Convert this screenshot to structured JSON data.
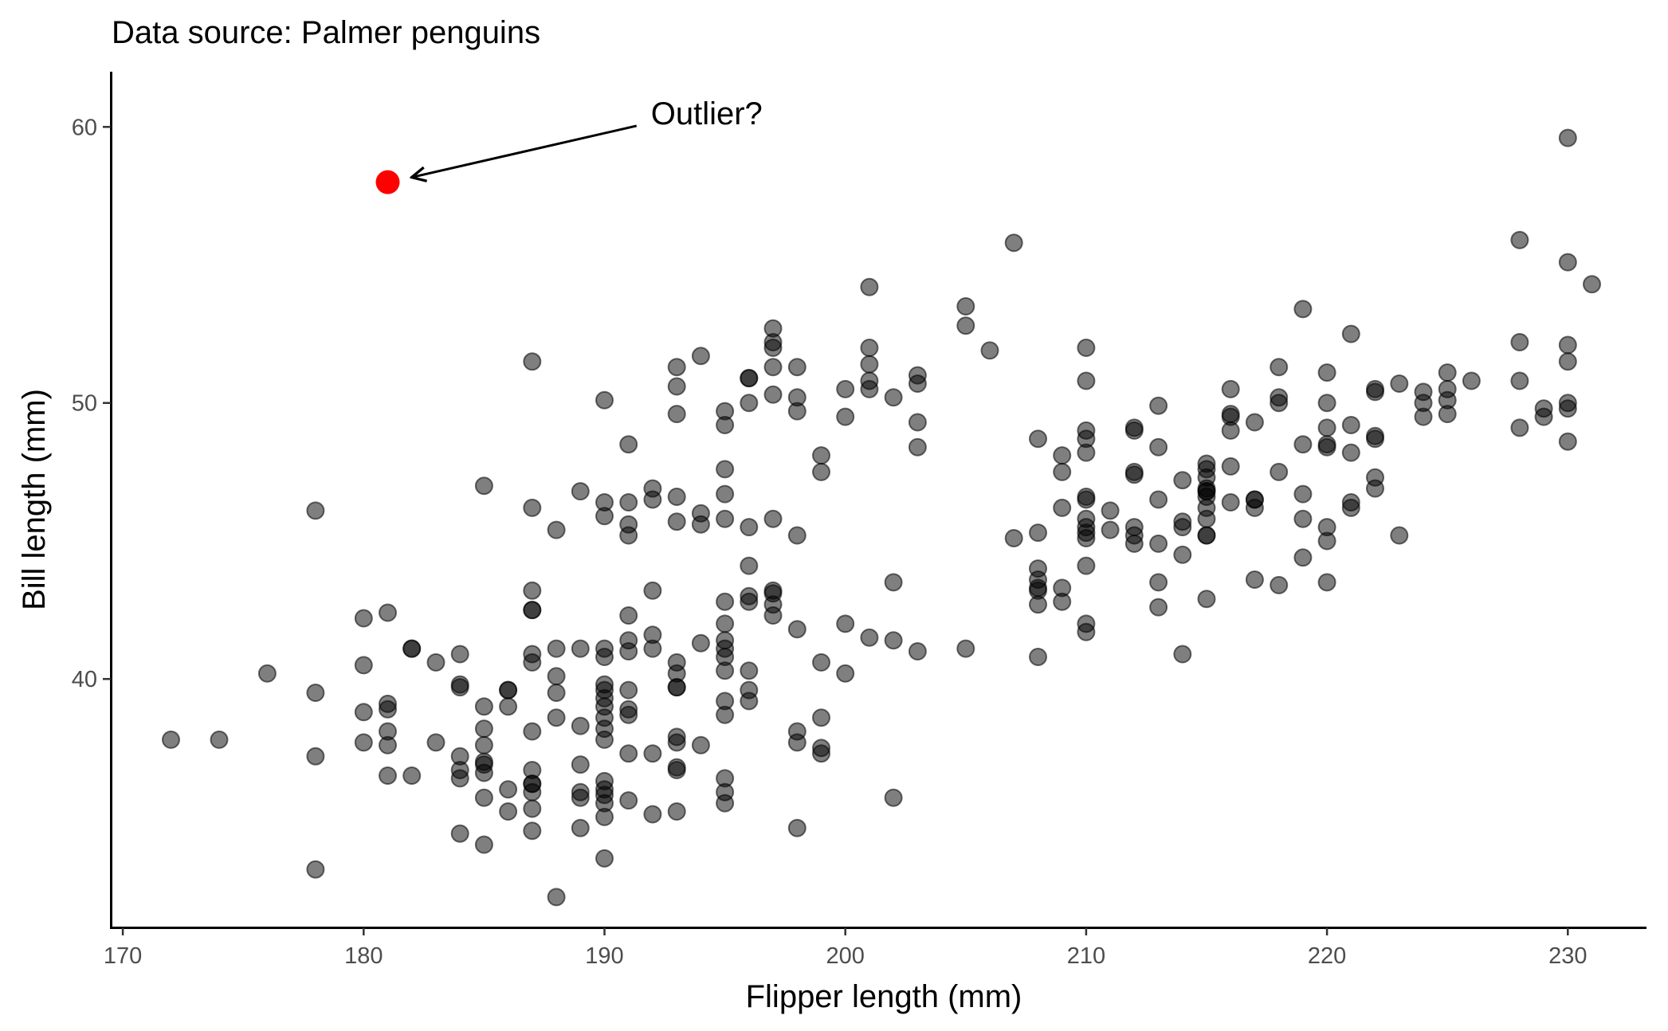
{
  "chart_data": {
    "type": "scatter",
    "subtitle": "Data source: Palmer penguins",
    "xlabel": "Flipper length (mm)",
    "ylabel": "Bill length (mm)",
    "xlim": [
      169.5,
      233.2
    ],
    "ylim": [
      31.0,
      62.0
    ],
    "x_ticks": [
      170,
      180,
      190,
      200,
      210,
      220,
      230
    ],
    "y_ticks": [
      40,
      50,
      60
    ],
    "grid": false,
    "point_color": "#000000",
    "point_opacity": 0.5,
    "highlight_color": "#ff0000",
    "highlight": {
      "x": 181,
      "y": 58.0
    },
    "annotation": {
      "text": "Outlier?",
      "x": 191.0,
      "y": 60.5
    },
    "points": [
      [
        172,
        37.8
      ],
      [
        174,
        37.8
      ],
      [
        176,
        40.2
      ],
      [
        178,
        46.1
      ],
      [
        178,
        39.5
      ],
      [
        178,
        37.2
      ],
      [
        178,
        33.1
      ],
      [
        180,
        42.2
      ],
      [
        180,
        40.5
      ],
      [
        180,
        38.8
      ],
      [
        180,
        37.7
      ],
      [
        181,
        42.4
      ],
      [
        181,
        39.1
      ],
      [
        181,
        38.9
      ],
      [
        181,
        38.1
      ],
      [
        181,
        37.6
      ],
      [
        181,
        36.5
      ],
      [
        182,
        41.1
      ],
      [
        182,
        41.1
      ],
      [
        182,
        36.5
      ],
      [
        183,
        40.6
      ],
      [
        183,
        37.7
      ],
      [
        184,
        40.9
      ],
      [
        184,
        39.8
      ],
      [
        184,
        39.7
      ],
      [
        184,
        37.2
      ],
      [
        184,
        36.7
      ],
      [
        184,
        36.4
      ],
      [
        184,
        34.4
      ],
      [
        185,
        47.0
      ],
      [
        185,
        39.0
      ],
      [
        185,
        38.2
      ],
      [
        185,
        37.6
      ],
      [
        185,
        37.0
      ],
      [
        185,
        36.9
      ],
      [
        185,
        36.6
      ],
      [
        185,
        35.7
      ],
      [
        185,
        34.0
      ],
      [
        186,
        39.6
      ],
      [
        186,
        39.6
      ],
      [
        186,
        39.0
      ],
      [
        186,
        36.0
      ],
      [
        186,
        35.2
      ],
      [
        187,
        51.5
      ],
      [
        187,
        46.2
      ],
      [
        187,
        43.2
      ],
      [
        187,
        42.5
      ],
      [
        187,
        42.5
      ],
      [
        187,
        40.9
      ],
      [
        187,
        40.6
      ],
      [
        187,
        38.1
      ],
      [
        187,
        36.7
      ],
      [
        187,
        36.2
      ],
      [
        187,
        36.2
      ],
      [
        187,
        35.9
      ],
      [
        187,
        35.3
      ],
      [
        187,
        34.5
      ],
      [
        188,
        45.4
      ],
      [
        188,
        41.1
      ],
      [
        188,
        40.1
      ],
      [
        188,
        39.5
      ],
      [
        188,
        38.6
      ],
      [
        188,
        32.1
      ],
      [
        189,
        46.8
      ],
      [
        189,
        41.1
      ],
      [
        189,
        38.3
      ],
      [
        189,
        36.9
      ],
      [
        189,
        35.9
      ],
      [
        189,
        35.7
      ],
      [
        189,
        34.6
      ],
      [
        190,
        50.1
      ],
      [
        190,
        46.4
      ],
      [
        190,
        45.9
      ],
      [
        190,
        41.1
      ],
      [
        190,
        40.8
      ],
      [
        190,
        39.8
      ],
      [
        190,
        39.6
      ],
      [
        190,
        39.3
      ],
      [
        190,
        39.0
      ],
      [
        190,
        38.6
      ],
      [
        190,
        38.2
      ],
      [
        190,
        37.8
      ],
      [
        190,
        36.3
      ],
      [
        190,
        36.0
      ],
      [
        190,
        35.8
      ],
      [
        190,
        35.5
      ],
      [
        190,
        35.0
      ],
      [
        190,
        33.5
      ],
      [
        191,
        48.5
      ],
      [
        191,
        46.4
      ],
      [
        191,
        45.6
      ],
      [
        191,
        45.2
      ],
      [
        191,
        42.3
      ],
      [
        191,
        41.4
      ],
      [
        191,
        41.0
      ],
      [
        191,
        39.6
      ],
      [
        191,
        38.9
      ],
      [
        191,
        38.7
      ],
      [
        191,
        37.3
      ],
      [
        191,
        35.6
      ],
      [
        192,
        46.9
      ],
      [
        192,
        46.5
      ],
      [
        192,
        43.2
      ],
      [
        192,
        41.6
      ],
      [
        192,
        41.1
      ],
      [
        192,
        37.3
      ],
      [
        192,
        35.1
      ],
      [
        193,
        51.3
      ],
      [
        193,
        50.6
      ],
      [
        193,
        49.6
      ],
      [
        193,
        46.6
      ],
      [
        193,
        45.7
      ],
      [
        193,
        40.6
      ],
      [
        193,
        40.2
      ],
      [
        193,
        39.7
      ],
      [
        193,
        39.7
      ],
      [
        193,
        37.9
      ],
      [
        193,
        37.7
      ],
      [
        193,
        36.8
      ],
      [
        193,
        36.7
      ],
      [
        193,
        35.2
      ],
      [
        194,
        51.7
      ],
      [
        194,
        46.0
      ],
      [
        194,
        45.6
      ],
      [
        194,
        41.3
      ],
      [
        194,
        37.6
      ],
      [
        195,
        49.7
      ],
      [
        195,
        49.2
      ],
      [
        195,
        47.6
      ],
      [
        195,
        46.7
      ],
      [
        195,
        45.8
      ],
      [
        195,
        42.8
      ],
      [
        195,
        42.0
      ],
      [
        195,
        41.4
      ],
      [
        195,
        41.1
      ],
      [
        195,
        40.8
      ],
      [
        195,
        40.3
      ],
      [
        195,
        39.2
      ],
      [
        195,
        38.7
      ],
      [
        195,
        36.4
      ],
      [
        195,
        35.9
      ],
      [
        195,
        35.5
      ],
      [
        196,
        50.9
      ],
      [
        196,
        50.9
      ],
      [
        196,
        50.0
      ],
      [
        196,
        45.5
      ],
      [
        196,
        44.1
      ],
      [
        196,
        43.0
      ],
      [
        196,
        42.8
      ],
      [
        196,
        40.3
      ],
      [
        196,
        39.6
      ],
      [
        196,
        39.2
      ],
      [
        197,
        52.7
      ],
      [
        197,
        52.2
      ],
      [
        197,
        52.0
      ],
      [
        197,
        51.3
      ],
      [
        197,
        50.3
      ],
      [
        197,
        45.8
      ],
      [
        197,
        43.2
      ],
      [
        197,
        43.1
      ],
      [
        197,
        42.7
      ],
      [
        197,
        42.3
      ],
      [
        198,
        51.3
      ],
      [
        198,
        50.2
      ],
      [
        198,
        49.7
      ],
      [
        198,
        45.2
      ],
      [
        198,
        41.8
      ],
      [
        198,
        38.1
      ],
      [
        198,
        37.7
      ],
      [
        198,
        34.6
      ],
      [
        199,
        48.1
      ],
      [
        199,
        47.5
      ],
      [
        199,
        40.6
      ],
      [
        199,
        38.6
      ],
      [
        199,
        37.5
      ],
      [
        199,
        37.3
      ],
      [
        200,
        50.5
      ],
      [
        200,
        49.5
      ],
      [
        200,
        42.0
      ],
      [
        200,
        40.2
      ],
      [
        201,
        54.2
      ],
      [
        201,
        52.0
      ],
      [
        201,
        51.4
      ],
      [
        201,
        50.8
      ],
      [
        201,
        50.5
      ],
      [
        201,
        41.5
      ],
      [
        202,
        50.2
      ],
      [
        202,
        43.5
      ],
      [
        202,
        41.4
      ],
      [
        202,
        35.7
      ],
      [
        203,
        51.0
      ],
      [
        203,
        50.7
      ],
      [
        203,
        49.3
      ],
      [
        203,
        48.4
      ],
      [
        203,
        41.0
      ],
      [
        205,
        53.5
      ],
      [
        205,
        52.8
      ],
      [
        205,
        41.1
      ],
      [
        206,
        51.9
      ],
      [
        207,
        55.8
      ],
      [
        207,
        45.1
      ],
      [
        208,
        48.7
      ],
      [
        208,
        45.3
      ],
      [
        208,
        44.0
      ],
      [
        208,
        43.6
      ],
      [
        208,
        43.3
      ],
      [
        208,
        43.2
      ],
      [
        208,
        42.7
      ],
      [
        208,
        40.8
      ],
      [
        209,
        48.1
      ],
      [
        209,
        47.5
      ],
      [
        209,
        46.2
      ],
      [
        209,
        43.3
      ],
      [
        209,
        42.8
      ],
      [
        210,
        52.0
      ],
      [
        210,
        50.8
      ],
      [
        210,
        49.0
      ],
      [
        210,
        48.7
      ],
      [
        210,
        48.2
      ],
      [
        210,
        46.6
      ],
      [
        210,
        46.5
      ],
      [
        210,
        45.8
      ],
      [
        210,
        45.5
      ],
      [
        210,
        45.3
      ],
      [
        210,
        45.1
      ],
      [
        210,
        44.1
      ],
      [
        210,
        42.0
      ],
      [
        210,
        41.7
      ],
      [
        211,
        46.1
      ],
      [
        211,
        45.4
      ],
      [
        212,
        49.1
      ],
      [
        212,
        49.0
      ],
      [
        212,
        47.5
      ],
      [
        212,
        47.4
      ],
      [
        212,
        45.5
      ],
      [
        212,
        45.2
      ],
      [
        212,
        44.9
      ],
      [
        213,
        49.9
      ],
      [
        213,
        48.4
      ],
      [
        213,
        46.5
      ],
      [
        213,
        44.9
      ],
      [
        213,
        43.5
      ],
      [
        213,
        42.6
      ],
      [
        214,
        47.2
      ],
      [
        214,
        45.7
      ],
      [
        214,
        45.5
      ],
      [
        214,
        44.5
      ],
      [
        214,
        40.9
      ],
      [
        215,
        47.8
      ],
      [
        215,
        47.6
      ],
      [
        215,
        47.3
      ],
      [
        215,
        46.9
      ],
      [
        215,
        46.8
      ],
      [
        215,
        46.8
      ],
      [
        215,
        46.6
      ],
      [
        215,
        46.2
      ],
      [
        215,
        45.8
      ],
      [
        215,
        45.2
      ],
      [
        215,
        45.2
      ],
      [
        215,
        42.9
      ],
      [
        216,
        50.5
      ],
      [
        216,
        49.6
      ],
      [
        216,
        49.5
      ],
      [
        216,
        49.0
      ],
      [
        216,
        47.7
      ],
      [
        216,
        46.4
      ],
      [
        217,
        49.3
      ],
      [
        217,
        46.5
      ],
      [
        217,
        46.5
      ],
      [
        217,
        46.2
      ],
      [
        217,
        43.6
      ],
      [
        218,
        51.3
      ],
      [
        218,
        50.2
      ],
      [
        218,
        50.0
      ],
      [
        218,
        47.5
      ],
      [
        218,
        43.4
      ],
      [
        219,
        53.4
      ],
      [
        219,
        48.5
      ],
      [
        219,
        46.7
      ],
      [
        219,
        45.8
      ],
      [
        219,
        44.4
      ],
      [
        220,
        51.1
      ],
      [
        220,
        50.0
      ],
      [
        220,
        49.1
      ],
      [
        220,
        48.5
      ],
      [
        220,
        48.4
      ],
      [
        220,
        45.5
      ],
      [
        220,
        45.0
      ],
      [
        220,
        43.5
      ],
      [
        221,
        52.5
      ],
      [
        221,
        49.2
      ],
      [
        221,
        48.2
      ],
      [
        221,
        46.4
      ],
      [
        221,
        46.2
      ],
      [
        222,
        50.5
      ],
      [
        222,
        50.4
      ],
      [
        222,
        48.8
      ],
      [
        222,
        48.7
      ],
      [
        222,
        47.3
      ],
      [
        222,
        46.9
      ],
      [
        223,
        50.7
      ],
      [
        223,
        45.2
      ],
      [
        224,
        50.4
      ],
      [
        224,
        50.0
      ],
      [
        224,
        49.5
      ],
      [
        225,
        51.1
      ],
      [
        225,
        50.5
      ],
      [
        225,
        50.1
      ],
      [
        225,
        49.6
      ],
      [
        226,
        50.8
      ],
      [
        228,
        55.9
      ],
      [
        228,
        52.2
      ],
      [
        228,
        50.8
      ],
      [
        228,
        49.1
      ],
      [
        229,
        49.8
      ],
      [
        229,
        49.5
      ],
      [
        230,
        59.6
      ],
      [
        230,
        55.1
      ],
      [
        230,
        52.1
      ],
      [
        230,
        51.5
      ],
      [
        230,
        50.0
      ],
      [
        230,
        49.8
      ],
      [
        230,
        48.6
      ],
      [
        231,
        54.3
      ]
    ]
  }
}
